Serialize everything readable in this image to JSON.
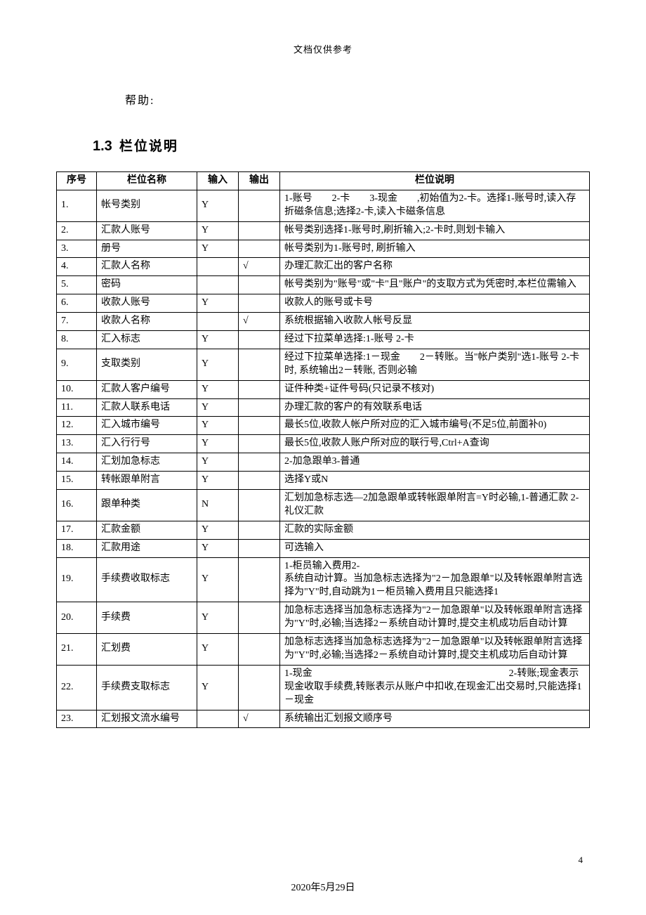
{
  "header_note": "文档仅供参考",
  "help_label": "帮助:",
  "section": {
    "number": "1.3",
    "title": "栏位说明"
  },
  "table": {
    "columns": [
      "序号",
      "栏位名称",
      "输入",
      "输出",
      "栏位说明"
    ],
    "rows": [
      {
        "idx": "1.",
        "name": "帐号类别",
        "in": "Y",
        "out": "",
        "desc": "1-账号　　2-卡　　3-现金　　,初始值为2-卡。选择1-账号时,读入存折磁条信息;选择2-卡,读入卡磁条信息"
      },
      {
        "idx": "2.",
        "name": "汇款人账号",
        "in": "Y",
        "out": "",
        "desc": "帐号类别选择1-账号时,刷折输入;2-卡时,则划卡输入"
      },
      {
        "idx": "3.",
        "name": "册号",
        "in": "Y",
        "out": "",
        "desc": "帐号类别为1-账号时, 刷折输入"
      },
      {
        "idx": "4.",
        "name": "汇款人名称",
        "in": "",
        "out": "√",
        "desc": "办理汇款汇出的客户名称"
      },
      {
        "idx": "5.",
        "name": "密码",
        "in": "",
        "out": "",
        "desc": "帐号类别为\"账号\"或\"卡\"且\"账户\"的支取方式为凭密时,本栏位需输入"
      },
      {
        "idx": "6.",
        "name": "收款人账号",
        "in": "Y",
        "out": "",
        "desc": "收款人的账号或卡号"
      },
      {
        "idx": "7.",
        "name": "收款人名称",
        "in": "",
        "out": "√",
        "desc": "系统根据输入收款人帐号反显"
      },
      {
        "idx": "8.",
        "name": "汇入标志",
        "in": "Y",
        "out": "",
        "desc": "经过下拉菜单选择:1-账号 2-卡"
      },
      {
        "idx": "9.",
        "name": "支取类别",
        "in": "Y",
        "out": "",
        "desc": "经过下拉菜单选择:1－现金　　2－转账。当\"帐户类别\"选1-账号 2-卡时, 系统输出2－转账, 否则必输"
      },
      {
        "idx": "10.",
        "name": "汇款人客户编号",
        "in": "Y",
        "out": "",
        "desc": "证件种类+证件号码(只记录不核对)"
      },
      {
        "idx": "11.",
        "name": "汇款人联系电话",
        "in": "Y",
        "out": "",
        "desc": "办理汇款的客户的有效联系电话"
      },
      {
        "idx": "12.",
        "name": "汇入城市编号",
        "in": "Y",
        "out": "",
        "desc": "最长5位,收款人帐户所对应的汇入城市编号(不足5位,前面补0)"
      },
      {
        "idx": "13.",
        "name": "汇入行行号",
        "in": "Y",
        "out": "",
        "desc": "最长5位,收款人账户所对应的联行号,Ctrl+A查询"
      },
      {
        "idx": "14.",
        "name": "汇划加急标志",
        "in": "Y",
        "out": "",
        "desc": "2-加急跟单3-普通"
      },
      {
        "idx": "15.",
        "name": "转帐跟单附言",
        "in": "Y",
        "out": "",
        "desc": "选择Y或N"
      },
      {
        "idx": "16.",
        "name": "跟单种类",
        "in": "N",
        "out": "",
        "desc": "汇划加急标志选—2加急跟单或转帐跟单附言=Y时必输,1-普通汇款 2-礼仪汇款"
      },
      {
        "idx": "17.",
        "name": "汇款金额",
        "in": "Y",
        "out": "",
        "desc": "汇款的实际金额"
      },
      {
        "idx": "18.",
        "name": "汇款用途",
        "in": "Y",
        "out": "",
        "desc": "可选输入"
      },
      {
        "idx": "19.",
        "name": "手续费收取标志",
        "in": "Y",
        "out": "",
        "desc": "1-柜员输入费用2-\n系统自动计算。当加急标志选择为\"2－加急跟单\"以及转帐跟单附言选择为\"Y\"时,自动跳为1－柜员输入费用且只能选择1"
      },
      {
        "idx": "20.",
        "name": "手续费",
        "in": "Y",
        "out": "",
        "desc": "加急标志选择当加急标志选择为\"2－加急跟单\"以及转帐跟单附言选择为\"Y\"时,必输;当选择2－系统自动计算时,提交主机成功后自动计算"
      },
      {
        "idx": "21.",
        "name": "汇划费",
        "in": "Y",
        "out": "",
        "desc": "加急标志选择当加急标志选择为\"2－加急跟单\"以及转帐跟单附言选择为\"Y\"时,必输;当选择2－系统自动计算时,提交主机成功后自动计算"
      },
      {
        "idx": "22.",
        "name": "手续费支取标志",
        "in": "Y",
        "out": "",
        "desc": "1-现金　　　　　　　　　　　　　　　　　　　　2-转账;现金表示现金收取手续费,转账表示从账户中扣收,在现金汇出交易时,只能选择1－现金"
      },
      {
        "idx": "23.",
        "name": "汇划报文流水编号",
        "in": "",
        "out": "√",
        "desc": "系统输出汇划报文顺序号"
      }
    ]
  },
  "page_number": "4",
  "footer_date": "2020年5月29日"
}
